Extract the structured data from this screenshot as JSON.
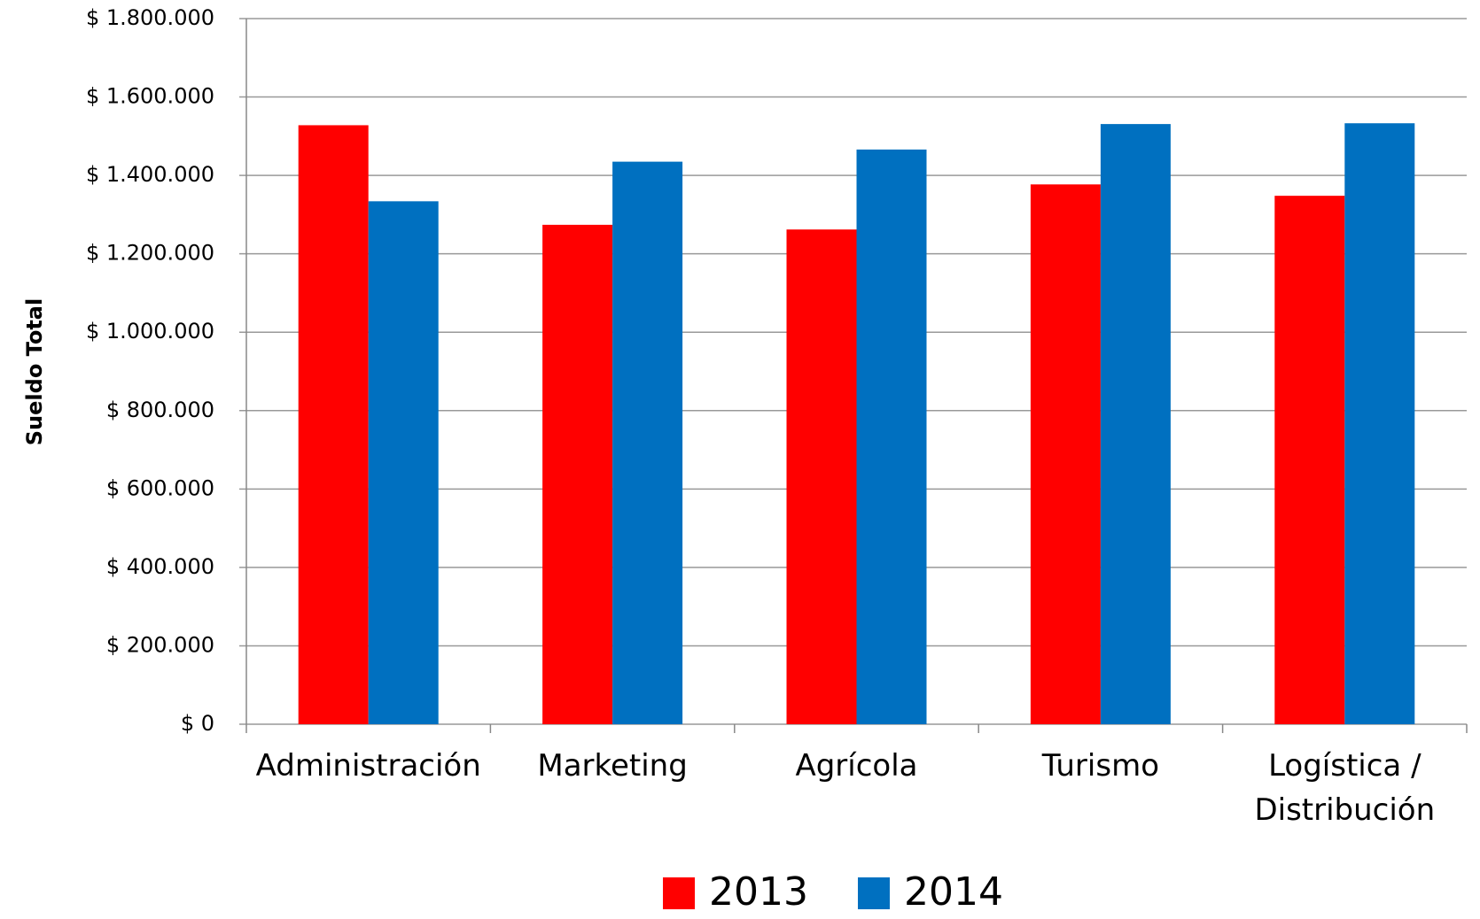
{
  "chart_data": {
    "type": "bar",
    "y_label": "Sueldo Total",
    "categories": [
      "Administración",
      "Marketing",
      "Agrícola",
      "Turismo",
      "Logística / Distribución"
    ],
    "series": [
      {
        "name": "2013",
        "color": "#ff0000",
        "values": [
          1528000,
          1274000,
          1262000,
          1377000,
          1348000
        ]
      },
      {
        "name": "2014",
        "color": "#0070c0",
        "values": [
          1334000,
          1435000,
          1466000,
          1531000,
          1533000
        ]
      }
    ],
    "ylim": [
      0,
      1800000
    ],
    "yticks": [
      {
        "value": 0,
        "label": "$ 0"
      },
      {
        "value": 200000,
        "label": "$ 200.000"
      },
      {
        "value": 400000,
        "label": "$ 400.000"
      },
      {
        "value": 600000,
        "label": "$ 600.000"
      },
      {
        "value": 800000,
        "label": "$ 800.000"
      },
      {
        "value": 1000000,
        "label": "$ 1.000.000"
      },
      {
        "value": 1200000,
        "label": "$ 1.200.000"
      },
      {
        "value": 1400000,
        "label": "$ 1.400.000"
      },
      {
        "value": 1600000,
        "label": "$ 1.600.000"
      },
      {
        "value": 1800000,
        "label": "$ 1.800.000"
      }
    ],
    "grid": true,
    "legend": "bottom"
  }
}
